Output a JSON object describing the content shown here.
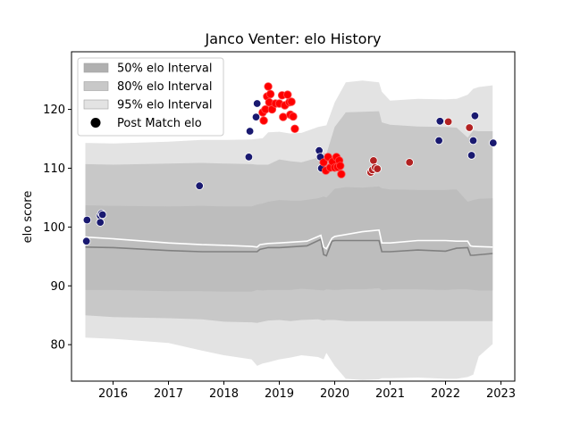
{
  "chart_data": {
    "type": "scatter",
    "title": "Janco Venter: elo History",
    "xlabel": "",
    "ylabel": "elo score",
    "xlim": [
      2015.25,
      2023.25
    ],
    "ylim": [
      73.8,
      129.8
    ],
    "x_ticks": [
      "2016",
      "2017",
      "2018",
      "2019",
      "2020",
      "2021",
      "2022",
      "2023"
    ],
    "y_ticks": [
      "80",
      "90",
      "100",
      "110",
      "120"
    ],
    "grid": false,
    "legend_position": "top-left",
    "legend": [
      {
        "label": "50% elo Interval",
        "kind": "band",
        "color": "#b0b0b0"
      },
      {
        "label": "80% elo Interval",
        "kind": "band",
        "color": "#c8c8c8"
      },
      {
        "label": "95% elo Interval",
        "kind": "band",
        "color": "#e3e3e3"
      },
      {
        "label": "Post Match elo",
        "kind": "marker",
        "color": "#000000"
      }
    ],
    "bands": {
      "x": [
        2015.5,
        2016.0,
        2017.0,
        2017.6,
        2018.0,
        2018.5,
        2018.6,
        2018.7,
        2018.8,
        2019.0,
        2019.2,
        2019.4,
        2019.7,
        2019.8,
        2019.85,
        2020.0,
        2020.2,
        2020.5,
        2020.8,
        2020.85,
        2021.0,
        2021.5,
        2022.0,
        2022.2,
        2022.4,
        2022.5,
        2022.6,
        2022.85
      ],
      "band95_upper": [
        114.3,
        114.2,
        114.5,
        114.8,
        114.8,
        114.9,
        115.0,
        115.1,
        116.1,
        116.2,
        115.9,
        116.0,
        117.0,
        117.2,
        117.3,
        121.2,
        124.6,
        124.9,
        124.6,
        123.0,
        121.5,
        121.8,
        121.7,
        121.8,
        122.5,
        123.5,
        123.8,
        124.1
      ],
      "band80_upper": [
        110.7,
        110.6,
        110.8,
        110.9,
        110.8,
        110.7,
        110.6,
        110.6,
        110.6,
        111.5,
        111.2,
        111.0,
        111.8,
        112.6,
        112.4,
        117.0,
        119.5,
        119.6,
        119.7,
        117.8,
        117.4,
        117.1,
        117.0,
        116.9,
        115.2,
        116.4,
        116.3,
        116.3
      ],
      "band50_upper": [
        103.7,
        103.6,
        103.5,
        103.6,
        103.5,
        103.5,
        103.8,
        104.0,
        104.3,
        104.6,
        104.5,
        104.5,
        104.9,
        105.2,
        105.0,
        106.5,
        106.8,
        106.7,
        106.9,
        106.6,
        106.4,
        106.3,
        106.3,
        106.4,
        104.3,
        104.6,
        104.8,
        104.9
      ],
      "band50_lower": [
        89.3,
        89.3,
        89.1,
        89.1,
        89.0,
        89.0,
        89.3,
        89.2,
        89.3,
        89.3,
        89.3,
        89.5,
        89.3,
        89.2,
        89.4,
        89.3,
        89.4,
        89.4,
        89.6,
        89.3,
        89.4,
        89.4,
        89.3,
        89.4,
        89.4,
        89.3,
        89.2,
        89.2
      ],
      "band80_lower": [
        85.0,
        84.7,
        84.5,
        84.3,
        83.9,
        83.8,
        83.7,
        83.9,
        84.1,
        84.2,
        84.0,
        84.2,
        84.3,
        84.1,
        84.2,
        84.2,
        84.0,
        84.0,
        84.0,
        84.0,
        84.0,
        84.0,
        84.0,
        84.0,
        84.0,
        84.0,
        84.0,
        84.0
      ],
      "band95_lower": [
        81.2,
        81.0,
        80.3,
        79.0,
        78.2,
        77.5,
        76.4,
        76.8,
        77.0,
        77.5,
        77.8,
        78.2,
        77.9,
        77.5,
        78.6,
        76.4,
        74.2,
        74.0,
        74.1,
        74.3,
        74.3,
        74.4,
        74.2,
        74.2,
        74.5,
        74.9,
        78.0,
        80.1
      ]
    },
    "median_line": {
      "color": "#808080",
      "x": [
        2015.5,
        2016.0,
        2017.0,
        2017.6,
        2018.0,
        2018.5,
        2018.6,
        2018.65,
        2018.8,
        2019.0,
        2019.5,
        2019.75,
        2019.8,
        2019.85,
        2019.95,
        2020.0,
        2020.5,
        2020.8,
        2020.85,
        2021.0,
        2021.5,
        2022.0,
        2022.2,
        2022.4,
        2022.45,
        2022.5,
        2022.85
      ],
      "y": [
        96.6,
        96.5,
        96.0,
        95.8,
        95.8,
        95.8,
        95.8,
        96.2,
        96.5,
        96.5,
        96.8,
        97.9,
        95.3,
        95.1,
        97.6,
        97.7,
        97.7,
        97.7,
        95.8,
        95.8,
        96.1,
        95.9,
        96.4,
        96.5,
        95.2,
        95.2,
        95.5
      ]
    },
    "mean_line": {
      "color": "#ffffff",
      "x": [
        2015.5,
        2016.0,
        2017.0,
        2017.6,
        2018.0,
        2018.5,
        2018.6,
        2018.65,
        2018.8,
        2019.0,
        2019.5,
        2019.75,
        2019.8,
        2019.85,
        2019.95,
        2020.0,
        2020.5,
        2020.8,
        2020.85,
        2021.0,
        2021.5,
        2022.0,
        2022.2,
        2022.4,
        2022.45,
        2022.5,
        2022.85
      ],
      "y": [
        98.3,
        98.0,
        97.3,
        97.0,
        96.9,
        96.7,
        96.6,
        97.0,
        97.2,
        97.3,
        97.6,
        98.6,
        96.6,
        96.3,
        98.1,
        98.4,
        99.2,
        99.5,
        97.3,
        97.3,
        97.7,
        97.7,
        97.6,
        97.6,
        96.8,
        96.7,
        96.6
      ]
    },
    "series": [
      {
        "name": "Post Match elo",
        "color": "#191970",
        "points": [
          [
            2015.52,
            97.6
          ],
          [
            2015.53,
            101.2
          ],
          [
            2015.77,
            101.9
          ],
          [
            2015.79,
            102.3
          ],
          [
            2015.77,
            100.8
          ],
          [
            2015.81,
            102.1
          ],
          [
            2017.56,
            107.0
          ],
          [
            2018.45,
            111.9
          ],
          [
            2018.47,
            116.3
          ],
          [
            2018.58,
            118.7
          ],
          [
            2018.6,
            121.0
          ],
          [
            2019.72,
            113.0
          ],
          [
            2019.74,
            111.9
          ],
          [
            2019.76,
            110.0
          ],
          [
            2021.88,
            114.7
          ],
          [
            2021.9,
            118.0
          ],
          [
            2022.47,
            112.2
          ],
          [
            2022.5,
            114.7
          ],
          [
            2022.53,
            118.9
          ],
          [
            2022.86,
            114.3
          ]
        ]
      },
      {
        "name": "",
        "color": "#ff0000",
        "points": [
          [
            2018.7,
            119.5
          ],
          [
            2018.72,
            118.1
          ],
          [
            2018.75,
            120.0
          ],
          [
            2018.78,
            122.2
          ],
          [
            2018.8,
            123.9
          ],
          [
            2018.82,
            121.2
          ],
          [
            2018.84,
            122.6
          ],
          [
            2018.87,
            120.0
          ],
          [
            2018.93,
            121.0
          ],
          [
            2019.0,
            121.0
          ],
          [
            2019.05,
            122.4
          ],
          [
            2019.07,
            118.7
          ],
          [
            2019.1,
            120.7
          ],
          [
            2019.15,
            122.5
          ],
          [
            2019.18,
            121.2
          ],
          [
            2019.2,
            119.1
          ],
          [
            2019.22,
            121.3
          ],
          [
            2019.25,
            118.8
          ],
          [
            2019.28,
            116.7
          ],
          [
            2019.8,
            111.0
          ],
          [
            2019.84,
            109.6
          ],
          [
            2019.88,
            111.9
          ],
          [
            2019.92,
            110.1
          ],
          [
            2019.96,
            111.1
          ],
          [
            2020.0,
            110.1
          ],
          [
            2020.03,
            111.9
          ],
          [
            2020.05,
            110.2
          ],
          [
            2020.08,
            111.3
          ],
          [
            2020.1,
            110.4
          ],
          [
            2020.12,
            109.0
          ]
        ]
      },
      {
        "name": "",
        "color": "#b22222",
        "points": [
          [
            2020.65,
            109.3
          ],
          [
            2020.68,
            109.7
          ],
          [
            2020.7,
            111.3
          ],
          [
            2020.73,
            110.1
          ],
          [
            2020.77,
            109.9
          ],
          [
            2021.35,
            111.0
          ],
          [
            2022.05,
            117.9
          ],
          [
            2022.43,
            116.9
          ]
        ]
      }
    ]
  }
}
